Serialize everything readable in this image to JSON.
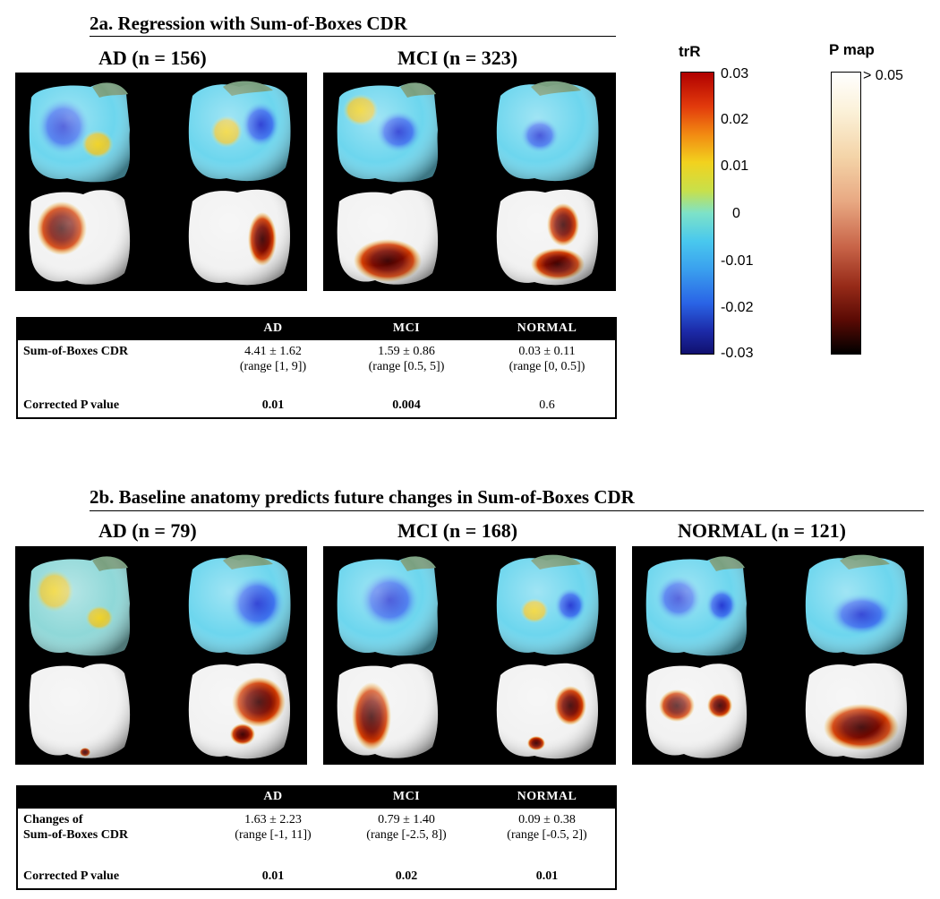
{
  "section_a": {
    "title": "2a. Regression with Sum-of-Boxes CDR",
    "groups": [
      {
        "label": "AD (n = 156)"
      },
      {
        "label": "MCI (n = 323)"
      }
    ],
    "table": {
      "headers": [
        "AD",
        "MCI",
        "NORMAL"
      ],
      "row1_label": "Sum-of-Boxes CDR",
      "row1_values": [
        "4.41 ± 1.62",
        "1.59 ± 0.86",
        "0.03 ± 0.11"
      ],
      "row1_ranges": [
        "(range [1, 9])",
        "(range [0.5, 5])",
        "(range [0, 0.5])"
      ],
      "row2_label": "Corrected P value",
      "row2_values": [
        "0.01",
        "0.004",
        "0.6"
      ]
    }
  },
  "section_b": {
    "title": "2b. Baseline anatomy predicts future changes in Sum-of-Boxes CDR",
    "groups": [
      {
        "label": "AD (n = 79)"
      },
      {
        "label": "MCI (n = 168)"
      },
      {
        "label": "NORMAL (n = 121)"
      }
    ],
    "table": {
      "headers": [
        "AD",
        "MCI",
        "NORMAL"
      ],
      "row1_label_line1": "Changes of",
      "row1_label_line2": "Sum-of-Boxes CDR",
      "row1_values": [
        "1.63 ± 2.23",
        "0.79 ± 1.40",
        "0.09 ± 0.38"
      ],
      "row1_ranges": [
        "(range [-1, 11])",
        "(range [-2.5, 8])",
        "(range [-0.5, 2])"
      ],
      "row2_label": "Corrected P value",
      "row2_values": [
        "0.01",
        "0.02",
        "0.01"
      ]
    }
  },
  "legend": {
    "trR": {
      "title": "trR",
      "ticks": [
        "0.03",
        "0.02",
        "0.01",
        "0",
        "-0.01",
        "-0.02",
        "-0.03"
      ]
    },
    "pmap": {
      "title": "P map",
      "top_label": "> 0.05"
    }
  }
}
